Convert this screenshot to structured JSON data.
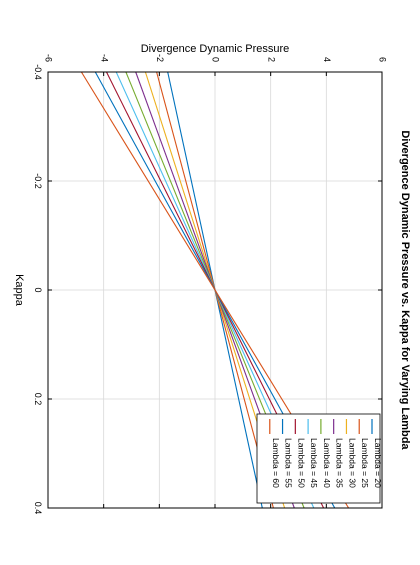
{
  "chart_data": {
    "type": "line",
    "title": "Divergence Dynamic Pressure vs. Kappa for Varying Lambda",
    "xlabel": "Kappa",
    "ylabel": "Divergence Dynamic Pressure",
    "xlim": [
      -0.4,
      0.4
    ],
    "ylim": [
      -6,
      6
    ],
    "x_ticks": [
      "-0.4",
      "-0.2",
      "0",
      "0.2",
      "0.4"
    ],
    "y_ticks": [
      "-6",
      "-4",
      "-2",
      "0",
      "2",
      "4",
      "6"
    ],
    "grid": true,
    "legend_position": "lower-right",
    "orientation": "rotated 90 degrees clockwise",
    "x": [
      -0.4,
      0.4
    ],
    "series": [
      {
        "name": "Lambda = 20",
        "values": [
          -1.7,
          1.7
        ],
        "color": "#0072bd"
      },
      {
        "name": "Lambda = 25",
        "values": [
          -2.1,
          2.1
        ],
        "color": "#d95319"
      },
      {
        "name": "Lambda = 30",
        "values": [
          -2.5,
          2.5
        ],
        "color": "#edb120"
      },
      {
        "name": "Lambda = 35",
        "values": [
          -2.85,
          2.85
        ],
        "color": "#7e2f8e"
      },
      {
        "name": "Lambda = 40",
        "values": [
          -3.2,
          3.2
        ],
        "color": "#77ac30"
      },
      {
        "name": "Lambda = 45",
        "values": [
          -3.55,
          3.55
        ],
        "color": "#4dbeee"
      },
      {
        "name": "Lambda = 50",
        "values": [
          -3.9,
          3.9
        ],
        "color": "#a2142f"
      },
      {
        "name": "Lambda = 55",
        "values": [
          -4.3,
          4.3
        ],
        "color": "#0072bd"
      },
      {
        "name": "Lambda = 60",
        "values": [
          -4.8,
          4.8
        ],
        "color": "#d95319"
      }
    ]
  }
}
